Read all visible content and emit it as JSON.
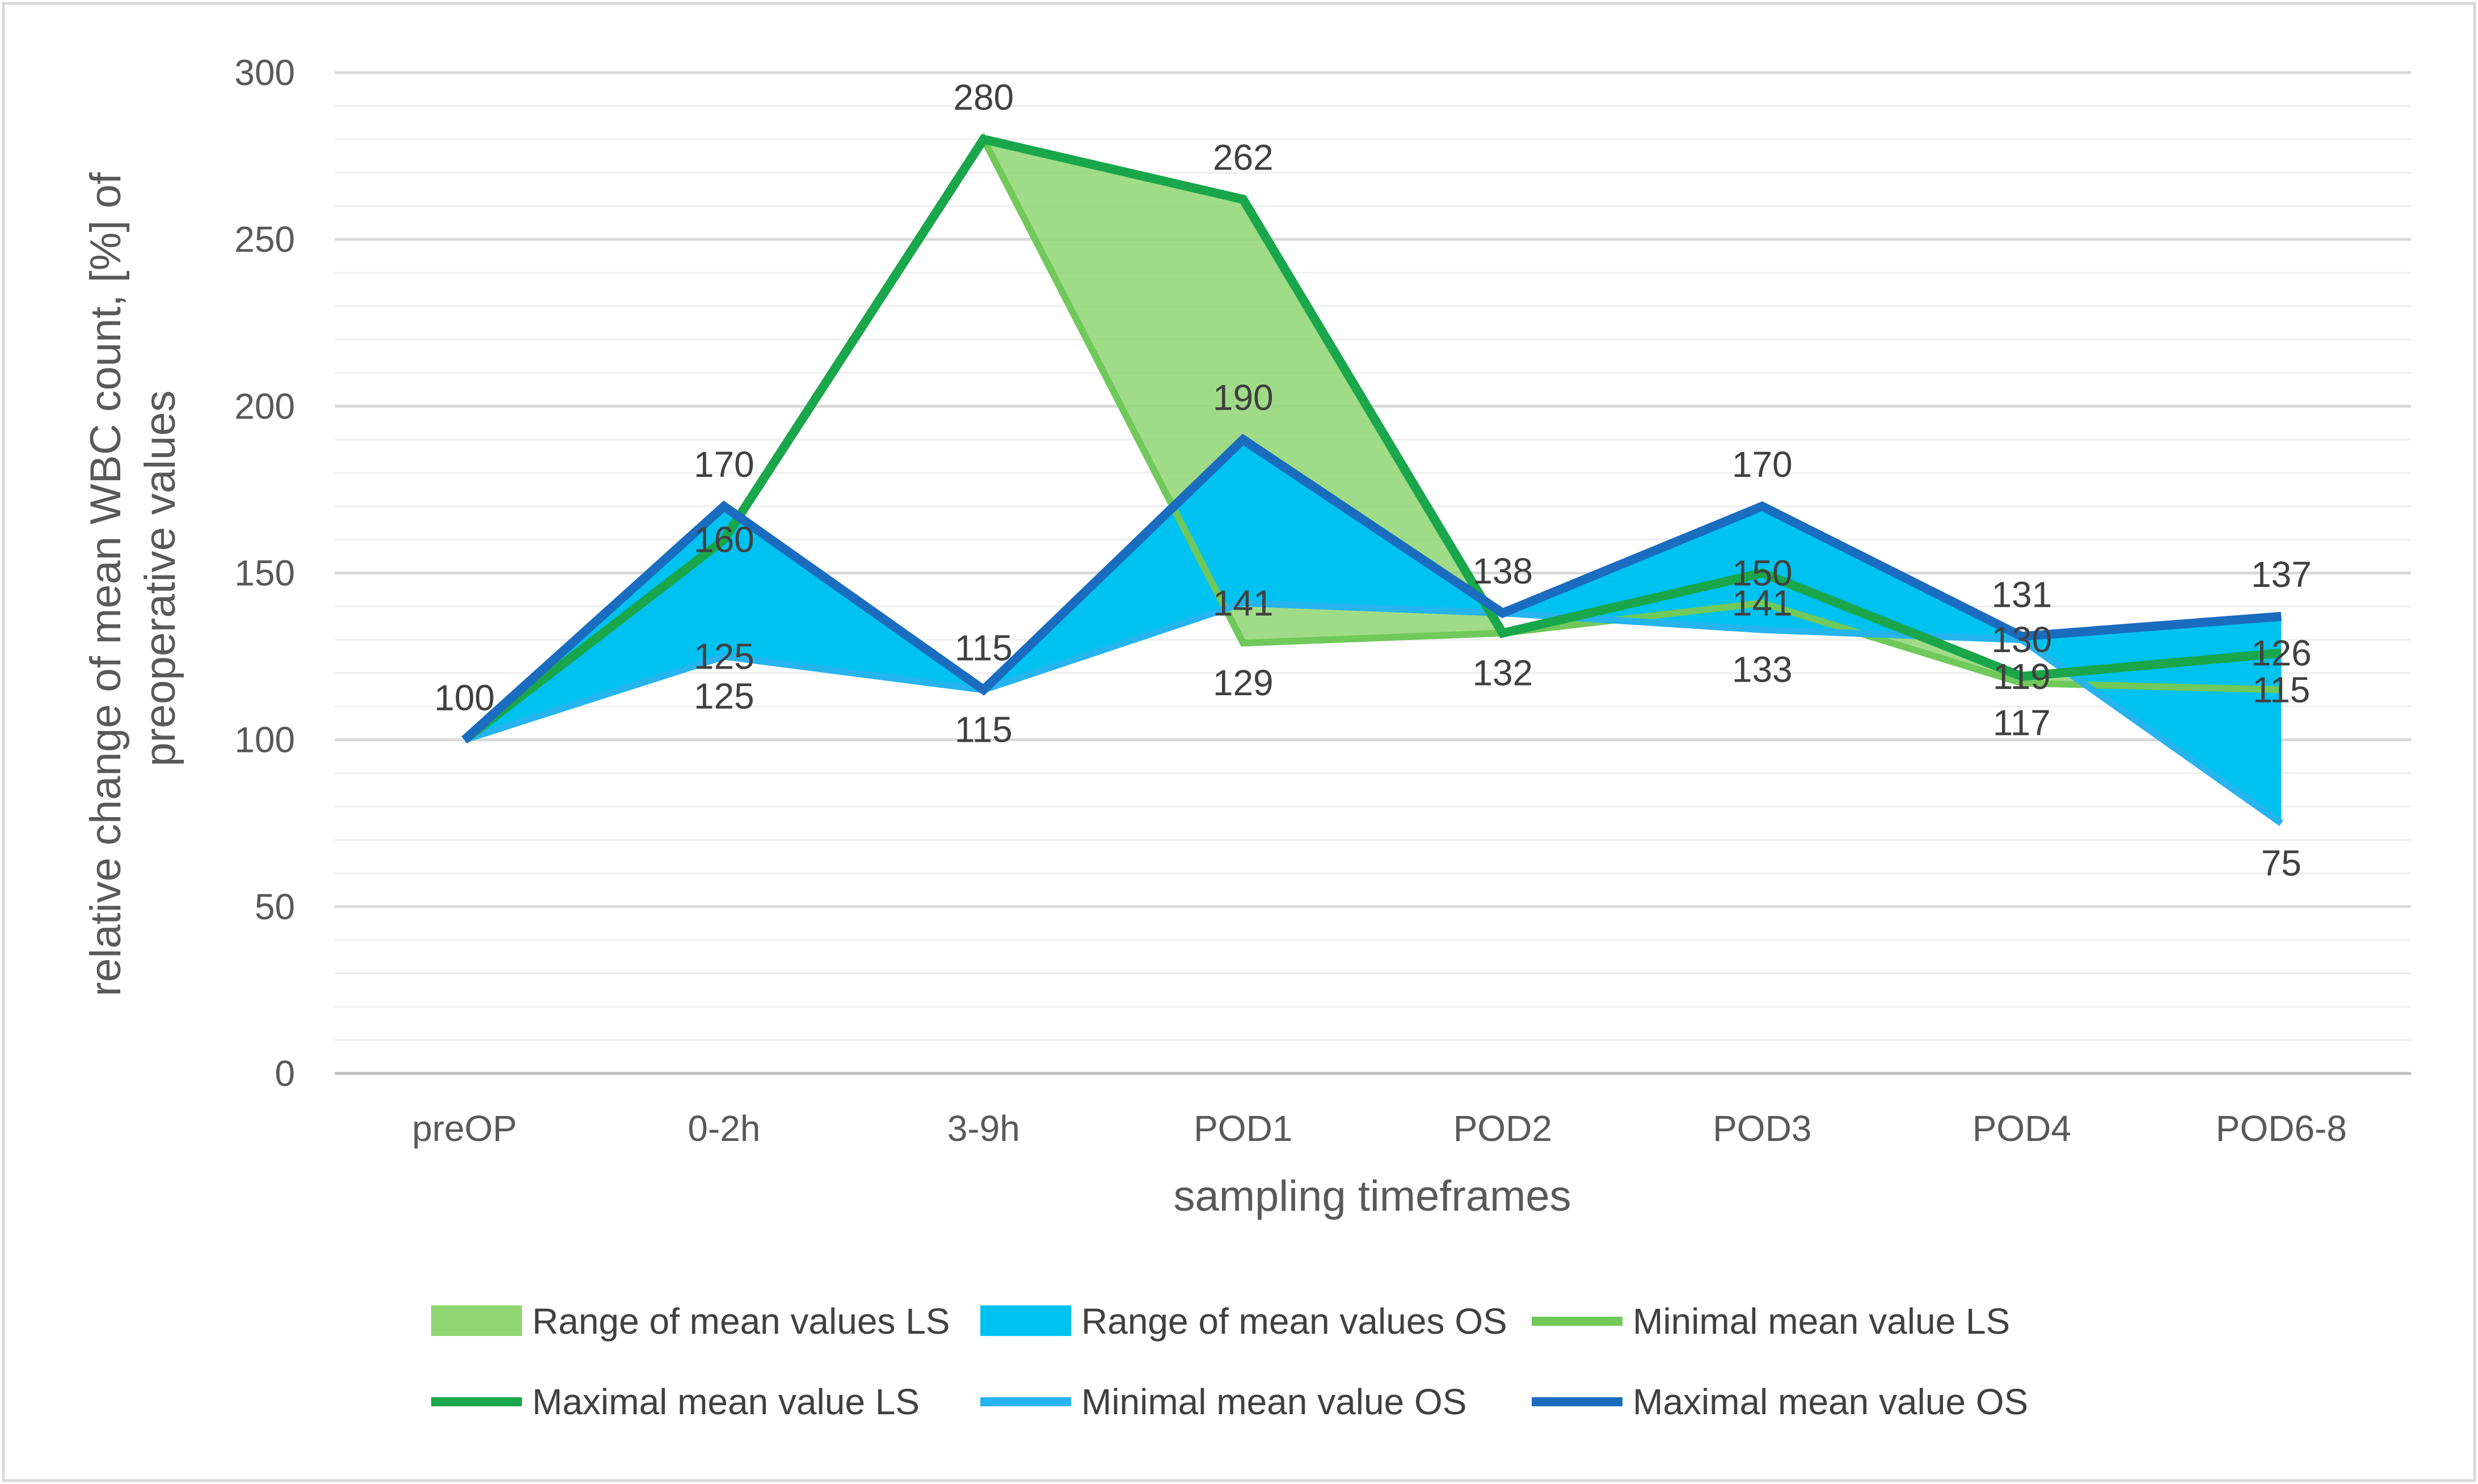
{
  "chart_data": {
    "type": "area",
    "title": "",
    "xlabel": "sampling timeframes",
    "ylabel_line1": "relative change of mean WBC count,  [%] of",
    "ylabel_line2": "preoperative values",
    "categories": [
      "preOP",
      "0-2h",
      "3-9h",
      "POD1",
      "POD2",
      "POD3",
      "POD4",
      "POD6-8"
    ],
    "ylim": [
      0,
      300
    ],
    "yticks": [
      "0",
      "50",
      "100",
      "150",
      "200",
      "250",
      "300"
    ],
    "grid": true,
    "legend_position": "bottom",
    "series": [
      {
        "name": "Minimal mean value LS",
        "values": [
          100,
          160,
          280,
          129,
          132,
          141,
          117,
          115
        ],
        "color": "#70C95A"
      },
      {
        "name": "Maximal mean value LS",
        "values": [
          100,
          160,
          280,
          262,
          132,
          150,
          119,
          126
        ],
        "color": "#1AA64A"
      },
      {
        "name": "Minimal mean value OS",
        "values": [
          100,
          125,
          115,
          141,
          138,
          133,
          130,
          75
        ],
        "color": "#25B4EE"
      },
      {
        "name": "Maximal mean value OS",
        "values": [
          100,
          170,
          115,
          190,
          138,
          170,
          131,
          137
        ],
        "color": "#1A6CBF"
      }
    ],
    "ranges": [
      {
        "name": "Range of mean values LS",
        "min_series": "Minimal mean value LS",
        "max_series": "Maximal mean value LS",
        "color": "#8FD672"
      },
      {
        "name": "Range of mean values OS",
        "min_series": "Minimal mean value OS",
        "max_series": "Maximal mean value OS",
        "color": "#00C2F0"
      }
    ],
    "data_labels": [
      {
        "text": "100",
        "category": "preOP",
        "value": 100,
        "placement": "above"
      },
      {
        "text": "170",
        "category": "0-2h",
        "value": 170,
        "placement": "above"
      },
      {
        "text": "160",
        "category": "0-2h",
        "value": 160,
        "placement": "center"
      },
      {
        "text": "125",
        "category": "0-2h",
        "value": 125,
        "placement": "center"
      },
      {
        "text": "125",
        "category": "0-2h",
        "value": 125,
        "placement": "below"
      },
      {
        "text": "280",
        "category": "3-9h",
        "value": 280,
        "placement": "above"
      },
      {
        "text": "115",
        "category": "3-9h",
        "value": 115,
        "placement": "above"
      },
      {
        "text": "115",
        "category": "3-9h",
        "value": 115,
        "placement": "below"
      },
      {
        "text": "262",
        "category": "POD1",
        "value": 262,
        "placement": "above"
      },
      {
        "text": "190",
        "category": "POD1",
        "value": 190,
        "placement": "above"
      },
      {
        "text": "141",
        "category": "POD1",
        "value": 141,
        "placement": "center"
      },
      {
        "text": "129",
        "category": "POD1",
        "value": 129,
        "placement": "below"
      },
      {
        "text": "138",
        "category": "POD2",
        "value": 138,
        "placement": "above"
      },
      {
        "text": "132",
        "category": "POD2",
        "value": 132,
        "placement": "below"
      },
      {
        "text": "170",
        "category": "POD3",
        "value": 170,
        "placement": "above"
      },
      {
        "text": "150",
        "category": "POD3",
        "value": 150,
        "placement": "center"
      },
      {
        "text": "141",
        "category": "POD3",
        "value": 141,
        "placement": "center"
      },
      {
        "text": "133",
        "category": "POD3",
        "value": 133,
        "placement": "below"
      },
      {
        "text": "131",
        "category": "POD4",
        "value": 131,
        "placement": "above"
      },
      {
        "text": "130",
        "category": "POD4",
        "value": 130,
        "placement": "center"
      },
      {
        "text": "119",
        "category": "POD4",
        "value": 119,
        "placement": "center"
      },
      {
        "text": "117",
        "category": "POD4",
        "value": 117,
        "placement": "below"
      },
      {
        "text": "137",
        "category": "POD6-8",
        "value": 137,
        "placement": "above"
      },
      {
        "text": "126",
        "category": "POD6-8",
        "value": 126,
        "placement": "center"
      },
      {
        "text": "115",
        "category": "POD6-8",
        "value": 115,
        "placement": "center"
      },
      {
        "text": "75",
        "category": "POD6-8",
        "value": 75,
        "placement": "below"
      }
    ],
    "legend": [
      {
        "label": "Range of mean values LS",
        "kind": "area",
        "color": "#8FD672"
      },
      {
        "label": "Range of mean values OS",
        "kind": "area",
        "color": "#00C2F0"
      },
      {
        "label": "Minimal mean value LS",
        "kind": "line",
        "color": "#70C95A"
      },
      {
        "label": "Maximal mean value LS",
        "kind": "line",
        "color": "#1AA64A"
      },
      {
        "label": "Minimal mean value OS",
        "kind": "line",
        "color": "#25B4EE"
      },
      {
        "label": "Maximal mean value OS",
        "kind": "line",
        "color": "#1A6CBF"
      }
    ]
  }
}
